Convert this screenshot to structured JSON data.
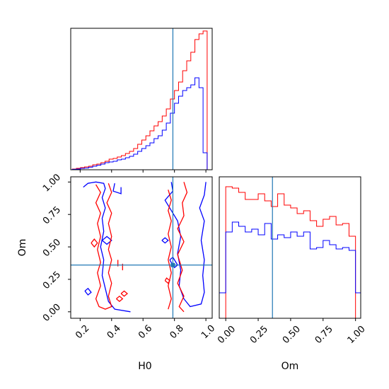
{
  "chart_data": [
    {
      "type": "histogram",
      "panel": "H0 marginal",
      "parameter": "H0",
      "truth_value": 0.79,
      "bins": [
        0.15,
        0.176,
        0.202,
        0.228,
        0.254,
        0.28,
        0.306,
        0.332,
        0.358,
        0.384,
        0.41,
        0.436,
        0.462,
        0.488,
        0.514,
        0.54,
        0.566,
        0.592,
        0.618,
        0.644,
        0.67,
        0.696,
        0.722,
        0.748,
        0.774,
        0.8,
        0.826,
        0.852,
        0.878,
        0.904,
        0.93,
        0.956,
        0.982,
        1.008
      ],
      "series": [
        {
          "color": "#ff0000",
          "values": [
            0.5,
            1,
            1.5,
            2,
            2.5,
            3.5,
            4,
            5,
            6,
            7.5,
            8,
            9,
            10,
            11.5,
            13,
            15,
            18,
            21,
            24,
            27.5,
            31,
            34,
            38,
            43,
            50,
            56,
            62,
            70,
            77,
            83,
            92,
            96,
            98,
            0
          ]
        },
        {
          "color": "#0000ff",
          "values": [
            0.3,
            0.5,
            1,
            1.2,
            1.8,
            2.5,
            3.2,
            4,
            5,
            5.5,
            6,
            7,
            7.5,
            8.5,
            9.5,
            11,
            13,
            15,
            17,
            19,
            22,
            24,
            28,
            33,
            40,
            47,
            52,
            56,
            58,
            60,
            65,
            58,
            12,
            0
          ]
        }
      ]
    },
    {
      "type": "contour",
      "panel": "H0 vs Om 2D",
      "x_parameter": "H0",
      "y_parameter": "Om",
      "truth": [
        0.79,
        0.36
      ],
      "series": [
        {
          "color": "#0000ff",
          "contours": [
            [
              [
                0.22,
                0.96
              ],
              [
                0.25,
                0.99
              ],
              [
                0.3,
                1.0
              ],
              [
                0.35,
                0.99
              ],
              [
                0.36,
                0.95
              ],
              [
                0.34,
                0.88
              ],
              [
                0.36,
                0.8
              ],
              [
                0.34,
                0.72
              ],
              [
                0.35,
                0.62
              ],
              [
                0.33,
                0.5
              ],
              [
                0.35,
                0.4
              ],
              [
                0.34,
                0.28
              ],
              [
                0.36,
                0.18
              ],
              [
                0.38,
                0.08
              ],
              [
                0.42,
                0.02
              ],
              [
                0.52,
                0.0
              ]
            ],
            [
              [
                0.42,
                0.99
              ],
              [
                0.41,
                0.93
              ],
              [
                0.46,
                0.91
              ],
              [
                0.46,
                0.96
              ]
            ],
            [
              [
                0.78,
                1.0
              ],
              [
                0.79,
                0.93
              ],
              [
                0.74,
                0.86
              ],
              [
                0.78,
                0.78
              ],
              [
                0.82,
                0.7
              ],
              [
                0.84,
                0.58
              ],
              [
                0.82,
                0.45
              ],
              [
                0.84,
                0.32
              ],
              [
                0.83,
                0.2
              ],
              [
                0.86,
                0.1
              ],
              [
                0.9,
                0.04
              ],
              [
                0.97,
                0.06
              ],
              [
                0.99,
                0.15
              ],
              [
                0.98,
                0.28
              ],
              [
                0.99,
                0.4
              ],
              [
                0.97,
                0.55
              ],
              [
                0.99,
                0.7
              ],
              [
                0.96,
                0.8
              ],
              [
                0.99,
                0.9
              ],
              [
                1.0,
                1.0
              ]
            ],
            [
              [
                0.23,
                0.16
              ],
              [
                0.25,
                0.13
              ],
              [
                0.27,
                0.15
              ],
              [
                0.25,
                0.18
              ],
              [
                0.23,
                0.16
              ]
            ],
            [
              [
                0.34,
                0.55
              ],
              [
                0.37,
                0.52
              ],
              [
                0.4,
                0.55
              ],
              [
                0.37,
                0.58
              ],
              [
                0.34,
                0.55
              ]
            ],
            [
              [
                0.72,
                0.55
              ],
              [
                0.74,
                0.53
              ],
              [
                0.76,
                0.55
              ],
              [
                0.74,
                0.57
              ],
              [
                0.72,
                0.55
              ]
            ],
            [
              [
                0.77,
                0.4
              ],
              [
                0.8,
                0.34
              ],
              [
                0.82,
                0.36
              ],
              [
                0.79,
                0.42
              ],
              [
                0.77,
                0.4
              ]
            ]
          ]
        },
        {
          "color": "#ff0000",
          "contours": [
            [
              [
                0.3,
                0.98
              ],
              [
                0.33,
                0.92
              ],
              [
                0.3,
                0.84
              ],
              [
                0.33,
                0.76
              ],
              [
                0.31,
                0.68
              ],
              [
                0.33,
                0.58
              ],
              [
                0.31,
                0.48
              ],
              [
                0.33,
                0.38
              ],
              [
                0.31,
                0.3
              ],
              [
                0.33,
                0.2
              ],
              [
                0.3,
                0.1
              ],
              [
                0.32,
                0.04
              ],
              [
                0.36,
                0.02
              ],
              [
                0.4,
                0.04
              ],
              [
                0.38,
                0.12
              ],
              [
                0.4,
                0.22
              ],
              [
                0.38,
                0.3
              ],
              [
                0.4,
                0.4
              ],
              [
                0.38,
                0.48
              ],
              [
                0.4,
                0.58
              ],
              [
                0.38,
                0.68
              ],
              [
                0.4,
                0.76
              ],
              [
                0.37,
                0.84
              ],
              [
                0.4,
                0.92
              ],
              [
                0.38,
                0.99
              ]
            ],
            [
              [
                0.86,
                1.0
              ],
              [
                0.88,
                0.92
              ],
              [
                0.85,
                0.84
              ],
              [
                0.86,
                0.74
              ],
              [
                0.82,
                0.64
              ],
              [
                0.86,
                0.54
              ],
              [
                0.82,
                0.44
              ],
              [
                0.85,
                0.32
              ],
              [
                0.82,
                0.22
              ],
              [
                0.86,
                0.12
              ],
              [
                0.83,
                0.04
              ],
              [
                0.86,
                0.0
              ]
            ],
            [
              [
                0.76,
                0.94
              ],
              [
                0.78,
                0.86
              ],
              [
                0.76,
                0.78
              ],
              [
                0.78,
                0.7
              ],
              [
                0.76,
                0.6
              ],
              [
                0.78,
                0.5
              ],
              [
                0.76,
                0.4
              ],
              [
                0.78,
                0.3
              ],
              [
                0.76,
                0.2
              ],
              [
                0.78,
                0.1
              ],
              [
                0.76,
                0.02
              ]
            ],
            [
              [
                0.47,
                0.37
              ],
              [
                0.47,
                0.32
              ]
            ],
            [
              [
                0.44,
                0.4
              ],
              [
                0.44,
                0.35
              ]
            ],
            [
              [
                0.27,
                0.53
              ],
              [
                0.29,
                0.5
              ],
              [
                0.31,
                0.53
              ],
              [
                0.29,
                0.56
              ],
              [
                0.27,
                0.53
              ]
            ],
            [
              [
                0.43,
                0.1
              ],
              [
                0.45,
                0.08
              ],
              [
                0.47,
                0.1
              ],
              [
                0.45,
                0.12
              ],
              [
                0.43,
                0.1
              ]
            ],
            [
              [
                0.46,
                0.14
              ],
              [
                0.48,
                0.12
              ],
              [
                0.5,
                0.14
              ],
              [
                0.48,
                0.16
              ],
              [
                0.46,
                0.14
              ]
            ],
            [
              [
                0.74,
                0.24
              ],
              [
                0.76,
                0.22
              ],
              [
                0.77,
                0.24
              ],
              [
                0.75,
                0.26
              ],
              [
                0.74,
                0.24
              ]
            ]
          ]
        }
      ]
    },
    {
      "type": "histogram",
      "panel": "Om marginal",
      "parameter": "Om",
      "truth_value": 0.36,
      "bins": [
        -0.05,
        0.0,
        0.05,
        0.1,
        0.15,
        0.2,
        0.25,
        0.3,
        0.35,
        0.4,
        0.45,
        0.5,
        0.55,
        0.6,
        0.65,
        0.7,
        0.75,
        0.8,
        0.85,
        0.9,
        0.95,
        1.0,
        1.05
      ],
      "series": [
        {
          "color": "#ff0000",
          "values": [
            0,
            93,
            92,
            89,
            84,
            84,
            88,
            83,
            79,
            88,
            80,
            78,
            74,
            76,
            69,
            65,
            70,
            72,
            66,
            67,
            58,
            0
          ]
        },
        {
          "color": "#0000ff",
          "values": [
            18,
            61,
            68,
            65,
            61,
            63,
            59,
            67,
            56,
            59,
            57,
            61,
            58,
            61,
            49,
            50,
            55,
            52,
            49,
            50,
            48,
            18
          ]
        }
      ]
    }
  ],
  "axes": {
    "h0": {
      "label": "H0",
      "xlim": [
        0.14,
        1.04
      ],
      "ticks": [
        "0.2",
        "0.4",
        "0.6",
        "0.8",
        "1.0"
      ]
    },
    "om": {
      "label": "Om",
      "lim": [
        -0.05,
        1.04
      ],
      "ticks_y": [
        "0.00",
        "0.25",
        "0.50",
        "0.75",
        "1.00"
      ],
      "ticks_x": [
        "0.00",
        "0.25",
        "0.50",
        "0.75",
        "1.00"
      ]
    }
  },
  "colors": {
    "red": "#ff0000",
    "blue": "#0000ff",
    "truth": "#1f77b4"
  }
}
